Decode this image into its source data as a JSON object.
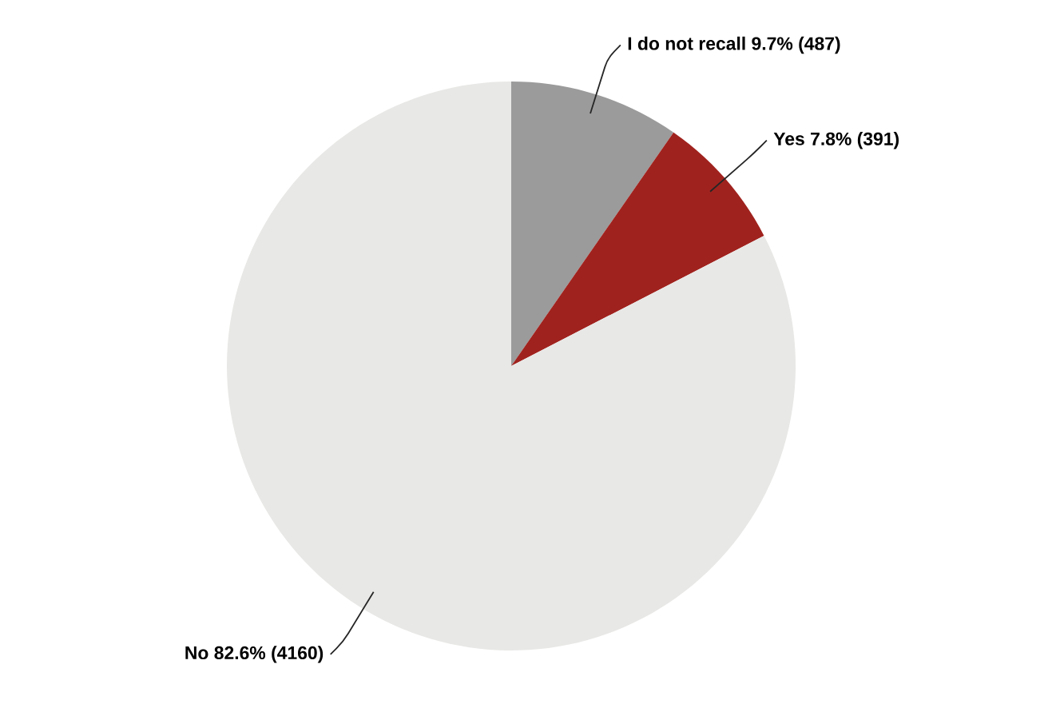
{
  "chart_data": {
    "type": "pie",
    "categories": [
      "I do not recall",
      "Yes",
      "No"
    ],
    "values": [
      487,
      391,
      4160
    ],
    "value_labels": [
      "9.7% (487)",
      "7.8% (391)",
      "82.6% (4160)"
    ],
    "colors": [
      "#9b9b9b",
      "#a0221e",
      "#e8e8e6"
    ]
  }
}
